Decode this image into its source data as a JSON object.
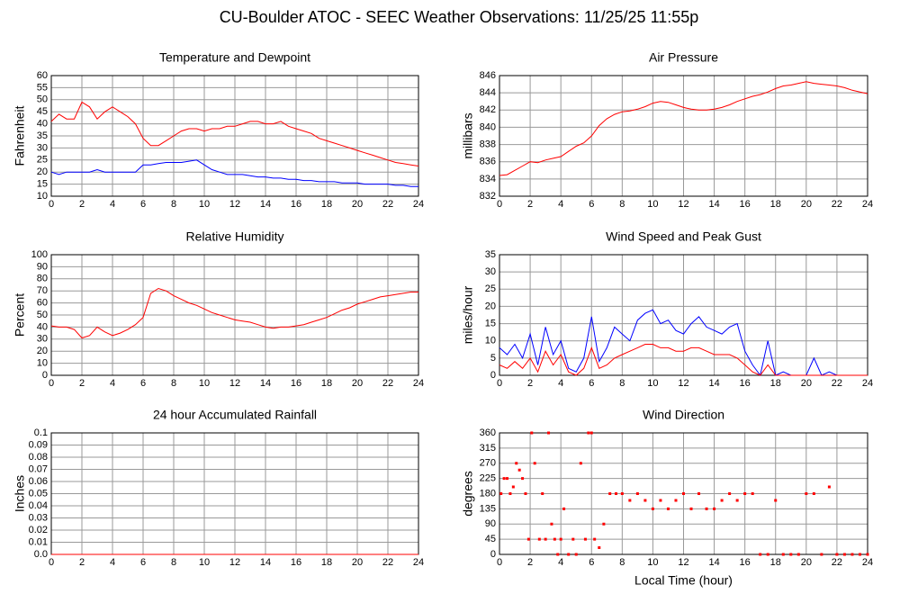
{
  "title": "CU-Boulder ATOC - SEEC Weather Observations: 11/25/25 11:55p",
  "chart_data": [
    {
      "type": "line",
      "title": "Temperature and Dewpoint",
      "y_label": "Fahrenheit",
      "xlim": [
        0,
        24
      ],
      "xticks": [
        0,
        2,
        4,
        6,
        8,
        10,
        12,
        14,
        16,
        18,
        20,
        22,
        24
      ],
      "ylim": [
        10,
        60
      ],
      "yticks": [
        10,
        15,
        20,
        25,
        30,
        35,
        40,
        45,
        50,
        55,
        60
      ],
      "grid": true,
      "x": [
        0,
        0.5,
        1,
        1.5,
        2,
        2.5,
        3,
        3.5,
        4,
        4.5,
        5,
        5.5,
        6,
        6.5,
        7,
        7.5,
        8,
        8.5,
        9,
        9.5,
        10,
        10.5,
        11,
        11.5,
        12,
        12.5,
        13,
        13.5,
        14,
        14.5,
        15,
        15.5,
        16,
        16.5,
        17,
        17.5,
        18,
        18.5,
        19,
        19.5,
        20,
        20.5,
        21,
        21.5,
        22,
        22.5,
        23,
        23.5,
        24
      ],
      "series": [
        {
          "color": "#ff0000",
          "values": [
            41,
            44,
            42,
            42,
            49,
            47,
            42,
            45,
            47,
            45,
            43,
            40,
            34,
            31,
            31,
            33,
            35,
            37,
            38,
            38,
            37,
            38,
            38,
            39,
            39,
            40,
            41,
            41,
            40,
            40,
            41,
            39,
            38,
            37,
            36,
            34,
            33,
            32,
            31,
            30,
            29,
            28,
            27,
            26,
            25,
            24,
            23.5,
            23,
            22.5
          ]
        },
        {
          "color": "#0000ff",
          "values": [
            20,
            19,
            20,
            20,
            20,
            20,
            21,
            20,
            20,
            20,
            20,
            20,
            23,
            23,
            23.5,
            24,
            24,
            24,
            24.5,
            25,
            23,
            21,
            20,
            19,
            19,
            19,
            18.5,
            18,
            18,
            17.5,
            17.5,
            17,
            17,
            16.5,
            16.5,
            16,
            16,
            16,
            15.5,
            15.5,
            15.5,
            15,
            15,
            15,
            15,
            14.5,
            14.5,
            14,
            14
          ]
        }
      ]
    },
    {
      "type": "line",
      "title": "Air Pressure",
      "y_label": "millibars",
      "xlim": [
        0,
        24
      ],
      "xticks": [
        0,
        2,
        4,
        6,
        8,
        10,
        12,
        14,
        16,
        18,
        20,
        22,
        24
      ],
      "ylim": [
        832,
        846
      ],
      "yticks": [
        832,
        834,
        836,
        838,
        840,
        842,
        844,
        846
      ],
      "grid": true,
      "x": [
        0,
        0.5,
        1,
        1.5,
        2,
        2.5,
        3,
        3.5,
        4,
        4.5,
        5,
        5.5,
        6,
        6.5,
        7,
        7.5,
        8,
        8.5,
        9,
        9.5,
        10,
        10.5,
        11,
        11.5,
        12,
        12.5,
        13,
        13.5,
        14,
        14.5,
        15,
        15.5,
        16,
        16.5,
        17,
        17.5,
        18,
        18.5,
        19,
        19.5,
        20,
        20.5,
        21,
        21.5,
        22,
        22.5,
        23,
        23.5,
        24
      ],
      "series": [
        {
          "color": "#ff0000",
          "values": [
            834.4,
            834.5,
            835,
            835.5,
            836,
            835.9,
            836.2,
            836.4,
            836.6,
            837.2,
            837.8,
            838.2,
            839,
            840.2,
            841,
            841.5,
            841.8,
            841.9,
            842.1,
            842.4,
            842.8,
            843,
            842.9,
            842.6,
            842.3,
            842.1,
            842,
            842,
            842.1,
            842.3,
            842.6,
            843,
            843.3,
            843.6,
            843.8,
            844.1,
            844.5,
            844.8,
            844.9,
            845.1,
            845.3,
            845.1,
            845,
            844.9,
            844.8,
            844.6,
            844.3,
            844.1,
            843.9
          ]
        }
      ]
    },
    {
      "type": "line",
      "title": "Relative Humidity",
      "y_label": "Percent",
      "xlim": [
        0,
        24
      ],
      "xticks": [
        0,
        2,
        4,
        6,
        8,
        10,
        12,
        14,
        16,
        18,
        20,
        22,
        24
      ],
      "ylim": [
        0,
        100
      ],
      "yticks": [
        0,
        10,
        20,
        30,
        40,
        50,
        60,
        70,
        80,
        90,
        100
      ],
      "grid": true,
      "x": [
        0,
        0.5,
        1,
        1.5,
        2,
        2.5,
        3,
        3.5,
        4,
        4.5,
        5,
        5.5,
        6,
        6.5,
        7,
        7.5,
        8,
        8.5,
        9,
        9.5,
        10,
        10.5,
        11,
        11.5,
        12,
        12.5,
        13,
        13.5,
        14,
        14.5,
        15,
        15.5,
        16,
        16.5,
        17,
        17.5,
        18,
        18.5,
        19,
        19.5,
        20,
        20.5,
        21,
        21.5,
        22,
        22.5,
        23,
        23.5,
        24
      ],
      "series": [
        {
          "color": "#ff0000",
          "values": [
            41,
            40,
            40,
            38,
            31,
            33,
            40,
            36,
            33,
            35,
            38,
            42,
            48,
            68,
            72,
            70,
            66,
            63,
            60,
            58,
            55,
            52,
            50,
            48,
            46,
            45,
            44,
            42,
            40,
            39,
            40,
            40,
            41,
            42,
            44,
            46,
            48,
            51,
            54,
            56,
            59,
            61,
            63,
            65,
            66,
            67,
            68,
            69,
            69
          ]
        }
      ]
    },
    {
      "type": "line",
      "title": "Wind Speed and Peak Gust",
      "y_label": "miles/hour",
      "xlim": [
        0,
        24
      ],
      "xticks": [
        0,
        2,
        4,
        6,
        8,
        10,
        12,
        14,
        16,
        18,
        20,
        22,
        24
      ],
      "ylim": [
        0,
        35
      ],
      "yticks": [
        0,
        5,
        10,
        15,
        20,
        25,
        30,
        35
      ],
      "grid": true,
      "x": [
        0,
        0.5,
        1,
        1.5,
        2,
        2.5,
        3,
        3.5,
        4,
        4.5,
        5,
        5.5,
        6,
        6.5,
        7,
        7.5,
        8,
        8.5,
        9,
        9.5,
        10,
        10.5,
        11,
        11.5,
        12,
        12.5,
        13,
        13.5,
        14,
        14.5,
        15,
        15.5,
        16,
        16.5,
        17,
        17.5,
        18,
        18.5,
        19,
        19.5,
        20,
        20.5,
        21,
        21.5,
        22,
        22.5,
        23,
        23.5,
        24
      ],
      "series": [
        {
          "color": "#0000ff",
          "values": [
            8,
            6,
            9,
            5,
            12,
            3,
            14,
            6,
            10,
            2,
            1,
            5,
            17,
            4,
            8,
            14,
            12,
            10,
            16,
            18,
            19,
            15,
            16,
            13,
            12,
            15,
            17,
            14,
            13,
            12,
            14,
            15,
            7,
            3,
            0,
            10,
            0,
            1,
            0,
            0,
            0,
            5,
            0,
            1,
            0,
            0,
            0,
            0,
            0
          ]
        },
        {
          "color": "#ff0000",
          "values": [
            3,
            2,
            4,
            2,
            5,
            1,
            7,
            3,
            6,
            1,
            0,
            2,
            8,
            2,
            3,
            5,
            6,
            7,
            8,
            9,
            9,
            8,
            8,
            7,
            7,
            8,
            8,
            7,
            6,
            6,
            6,
            5,
            3,
            1,
            0,
            3,
            0,
            0,
            0,
            0,
            0,
            0,
            0,
            0,
            0,
            0,
            0,
            0,
            0
          ]
        }
      ]
    },
    {
      "type": "line",
      "title": "24 hour Accumulated Rainfall",
      "y_label": "Inches",
      "xlim": [
        0,
        24
      ],
      "xticks": [
        0,
        2,
        4,
        6,
        8,
        10,
        12,
        14,
        16,
        18,
        20,
        22,
        24
      ],
      "ylim": [
        0,
        0.1
      ],
      "yticks": [
        {
          "value": 0,
          "label": "0.0"
        },
        0.01,
        0.02,
        0.03,
        0.04,
        0.05,
        0.06,
        0.07,
        0.08,
        0.09,
        0.1
      ],
      "grid": true,
      "x": [
        0,
        24
      ],
      "series": [
        {
          "color": "#ff0000",
          "values": [
            0,
            0
          ]
        }
      ]
    },
    {
      "type": "scatter",
      "title": "Wind Direction",
      "y_label": "degrees",
      "x_label": "Local Time (hour)",
      "xlim": [
        0,
        24
      ],
      "xticks": [
        0,
        2,
        4,
        6,
        8,
        10,
        12,
        14,
        16,
        18,
        20,
        22,
        24
      ],
      "ylim": [
        0,
        360
      ],
      "yticks": [
        0,
        45,
        90,
        135,
        180,
        225,
        270,
        315,
        360
      ],
      "grid": true,
      "x": [
        0.1,
        0.3,
        0.5,
        0.7,
        0.9,
        1.1,
        1.3,
        1.5,
        1.7,
        1.9,
        2.1,
        2.3,
        2.6,
        2.8,
        3.0,
        3.2,
        3.4,
        3.6,
        3.8,
        4.0,
        4.2,
        4.5,
        4.8,
        5.0,
        5.3,
        5.6,
        5.8,
        6.0,
        6.2,
        6.5,
        6.8,
        7.2,
        7.6,
        8.0,
        8.5,
        9.0,
        9.5,
        10,
        10.5,
        11,
        11.5,
        12,
        12.5,
        13,
        13.5,
        14,
        14.5,
        15,
        15.5,
        16,
        16.5,
        17,
        17.5,
        18,
        18.5,
        19,
        19.5,
        20,
        20.5,
        21,
        21.5,
        22,
        22.5,
        23,
        23.5,
        24
      ],
      "series": [
        {
          "color": "#ff0000",
          "values": [
            180,
            225,
            225,
            180,
            200,
            270,
            250,
            225,
            180,
            45,
            360,
            270,
            45,
            180,
            45,
            360,
            90,
            45,
            0,
            45,
            135,
            0,
            45,
            0,
            270,
            45,
            360,
            360,
            45,
            20,
            90,
            180,
            180,
            180,
            160,
            180,
            160,
            135,
            160,
            135,
            160,
            180,
            135,
            180,
            135,
            135,
            160,
            180,
            160,
            180,
            180,
            0,
            0,
            160,
            0,
            0,
            0,
            180,
            180,
            0,
            200,
            0,
            0,
            0,
            0,
            0
          ]
        }
      ]
    }
  ]
}
